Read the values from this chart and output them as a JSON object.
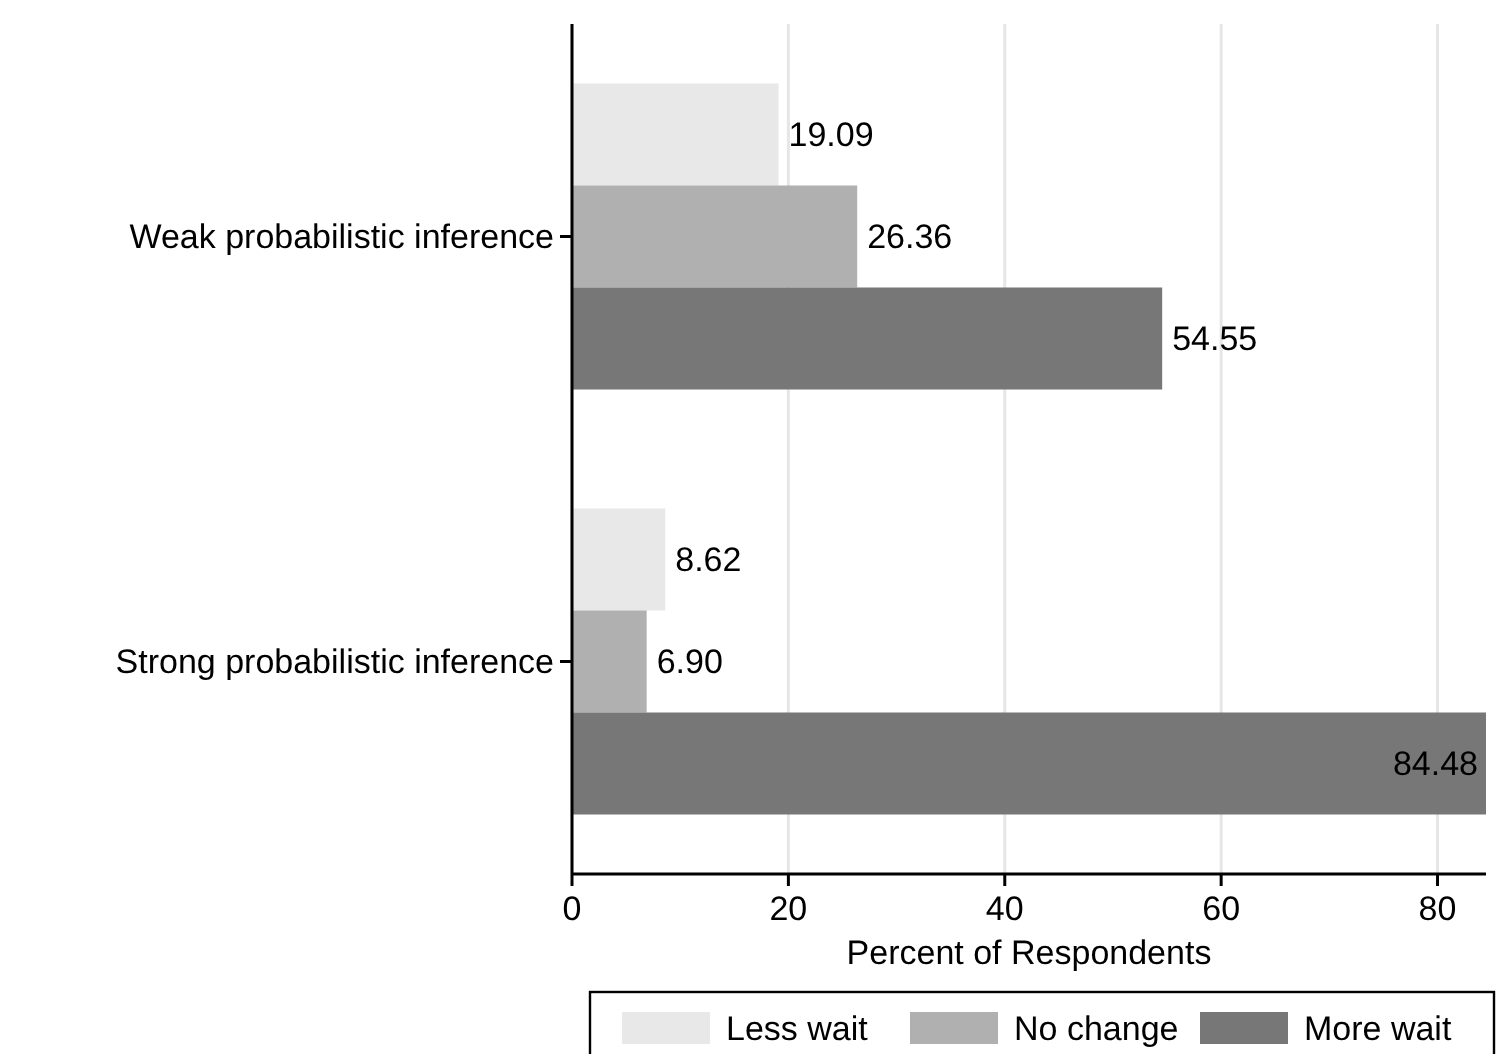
{
  "chart_data": {
    "type": "bar",
    "orientation": "horizontal",
    "xlabel": "Percent of Respondents",
    "categories": [
      "Weak probabilistic inference",
      "Strong probabilistic inference"
    ],
    "series": [
      {
        "name": "Less wait",
        "color": "#e8e8e8",
        "values": [
          19.09,
          8.62
        ],
        "value_labels": [
          "19.09",
          "8.62"
        ]
      },
      {
        "name": "No change",
        "color": "#b0b0b0",
        "values": [
          26.36,
          6.9
        ],
        "value_labels": [
          "26.36",
          "6.90"
        ]
      },
      {
        "name": "More wait",
        "color": "#777777",
        "values": [
          54.55,
          84.48
        ],
        "value_labels": [
          "54.55",
          "84.48"
        ]
      }
    ],
    "xlim": [
      0,
      84.48
    ],
    "xticks": [
      0,
      20,
      40,
      60,
      80
    ],
    "grid": "x",
    "legend": "bottom"
  }
}
